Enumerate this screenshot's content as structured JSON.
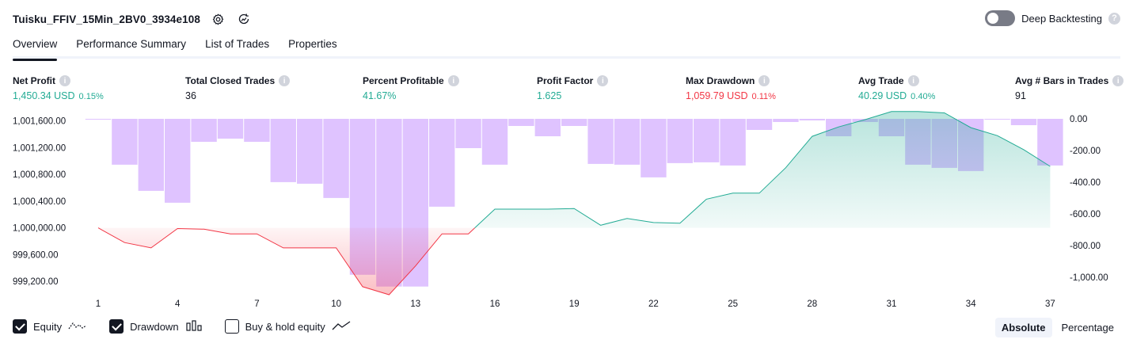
{
  "header": {
    "strategy_name": "Tuisku_FFIV_15Min_2BV0_3934e108",
    "deep_backtesting_label": "Deep Backtesting",
    "deep_backtesting_enabled": false
  },
  "tabs": [
    {
      "label": "Overview",
      "active": true
    },
    {
      "label": "Performance Summary",
      "active": false
    },
    {
      "label": "List of Trades",
      "active": false
    },
    {
      "label": "Properties",
      "active": false
    }
  ],
  "metrics": {
    "net_profit": {
      "label": "Net Profit",
      "value": "1,450.34 USD",
      "pct": "0.15%"
    },
    "total_closed_trades": {
      "label": "Total Closed Trades",
      "value": "36"
    },
    "percent_profitable": {
      "label": "Percent Profitable",
      "value": "41.67%"
    },
    "profit_factor": {
      "label": "Profit Factor",
      "value": "1.625"
    },
    "max_drawdown": {
      "label": "Max Drawdown",
      "value": "1,059.79 USD",
      "pct": "0.11%"
    },
    "avg_trade": {
      "label": "Avg Trade",
      "value": "40.29 USD",
      "pct": "0.40%"
    },
    "avg_bars": {
      "label": "Avg # Bars in Trades",
      "value": "91"
    }
  },
  "colors": {
    "profit_green": "#22ab94",
    "loss_red": "#f23645",
    "drawdown_bar": "#d9b8ff",
    "text": "#131722"
  },
  "chart_data": {
    "type": "line",
    "x_tick_labels": [
      "1",
      "4",
      "7",
      "10",
      "13",
      "16",
      "19",
      "22",
      "25",
      "28",
      "31",
      "34",
      "37"
    ],
    "left_axis_ticks": [
      "1,001,600.00",
      "1,001,200.00",
      "1,000,800.00",
      "1,000,400.00",
      "1,000,000.00",
      "999,600.00",
      "999,200.00"
    ],
    "right_axis_ticks": [
      "0.00",
      "-200.00",
      "-400.00",
      "-600.00",
      "-800.00",
      "-1,000.00"
    ],
    "left_ylim": [
      999000,
      1001750
    ],
    "right_ylim": [
      -1080,
      0
    ],
    "baseline": 1000000,
    "series": [
      {
        "name": "Equity",
        "axis": "left",
        "x": [
          1,
          2,
          3,
          4,
          5,
          6,
          7,
          8,
          9,
          10,
          11,
          12,
          13,
          14,
          15,
          16,
          17,
          18,
          19,
          20,
          21,
          22,
          23,
          24,
          25,
          26,
          27,
          28,
          29,
          30,
          31,
          32,
          33,
          34,
          35,
          36,
          37
        ],
        "values": [
          1000000,
          999780,
          999700,
          999990,
          999980,
          999910,
          999910,
          999700,
          999700,
          999700,
          999120,
          999000,
          999430,
          999910,
          999910,
          1000280,
          1000280,
          1000280,
          1000290,
          1000040,
          1000140,
          1000080,
          1000070,
          1000430,
          1000520,
          1000520,
          1000900,
          1001370,
          1001510,
          1001620,
          1001740,
          1001740,
          1001720,
          1001500,
          1001380,
          1001170,
          1000920
        ]
      },
      {
        "name": "Drawdown",
        "axis": "right",
        "type": "bar",
        "x": [
          1,
          2,
          3,
          4,
          5,
          6,
          7,
          8,
          9,
          10,
          11,
          12,
          13,
          14,
          15,
          16,
          17,
          18,
          19,
          20,
          21,
          22,
          23,
          24,
          25,
          26,
          27,
          28,
          29,
          30,
          31,
          32,
          33,
          34,
          35,
          36,
          37
        ],
        "values": [
          -5,
          -290,
          -455,
          -530,
          -145,
          -125,
          -145,
          -400,
          -410,
          -500,
          -985,
          -1059.79,
          -1059.79,
          -555,
          -185,
          -290,
          -45,
          -110,
          -45,
          -285,
          -290,
          -370,
          -280,
          -275,
          -295,
          -70,
          -20,
          -10,
          -110,
          -20,
          -110,
          -290,
          -310,
          -330,
          -5,
          -40,
          -295
        ]
      }
    ],
    "legend": [
      {
        "label": "Equity",
        "checked": true
      },
      {
        "label": "Drawdown",
        "checked": true
      },
      {
        "label": "Buy & hold equity",
        "checked": false
      }
    ],
    "grid": false
  },
  "mode_buttons": [
    {
      "label": "Absolute",
      "active": true
    },
    {
      "label": "Percentage",
      "active": false
    }
  ]
}
